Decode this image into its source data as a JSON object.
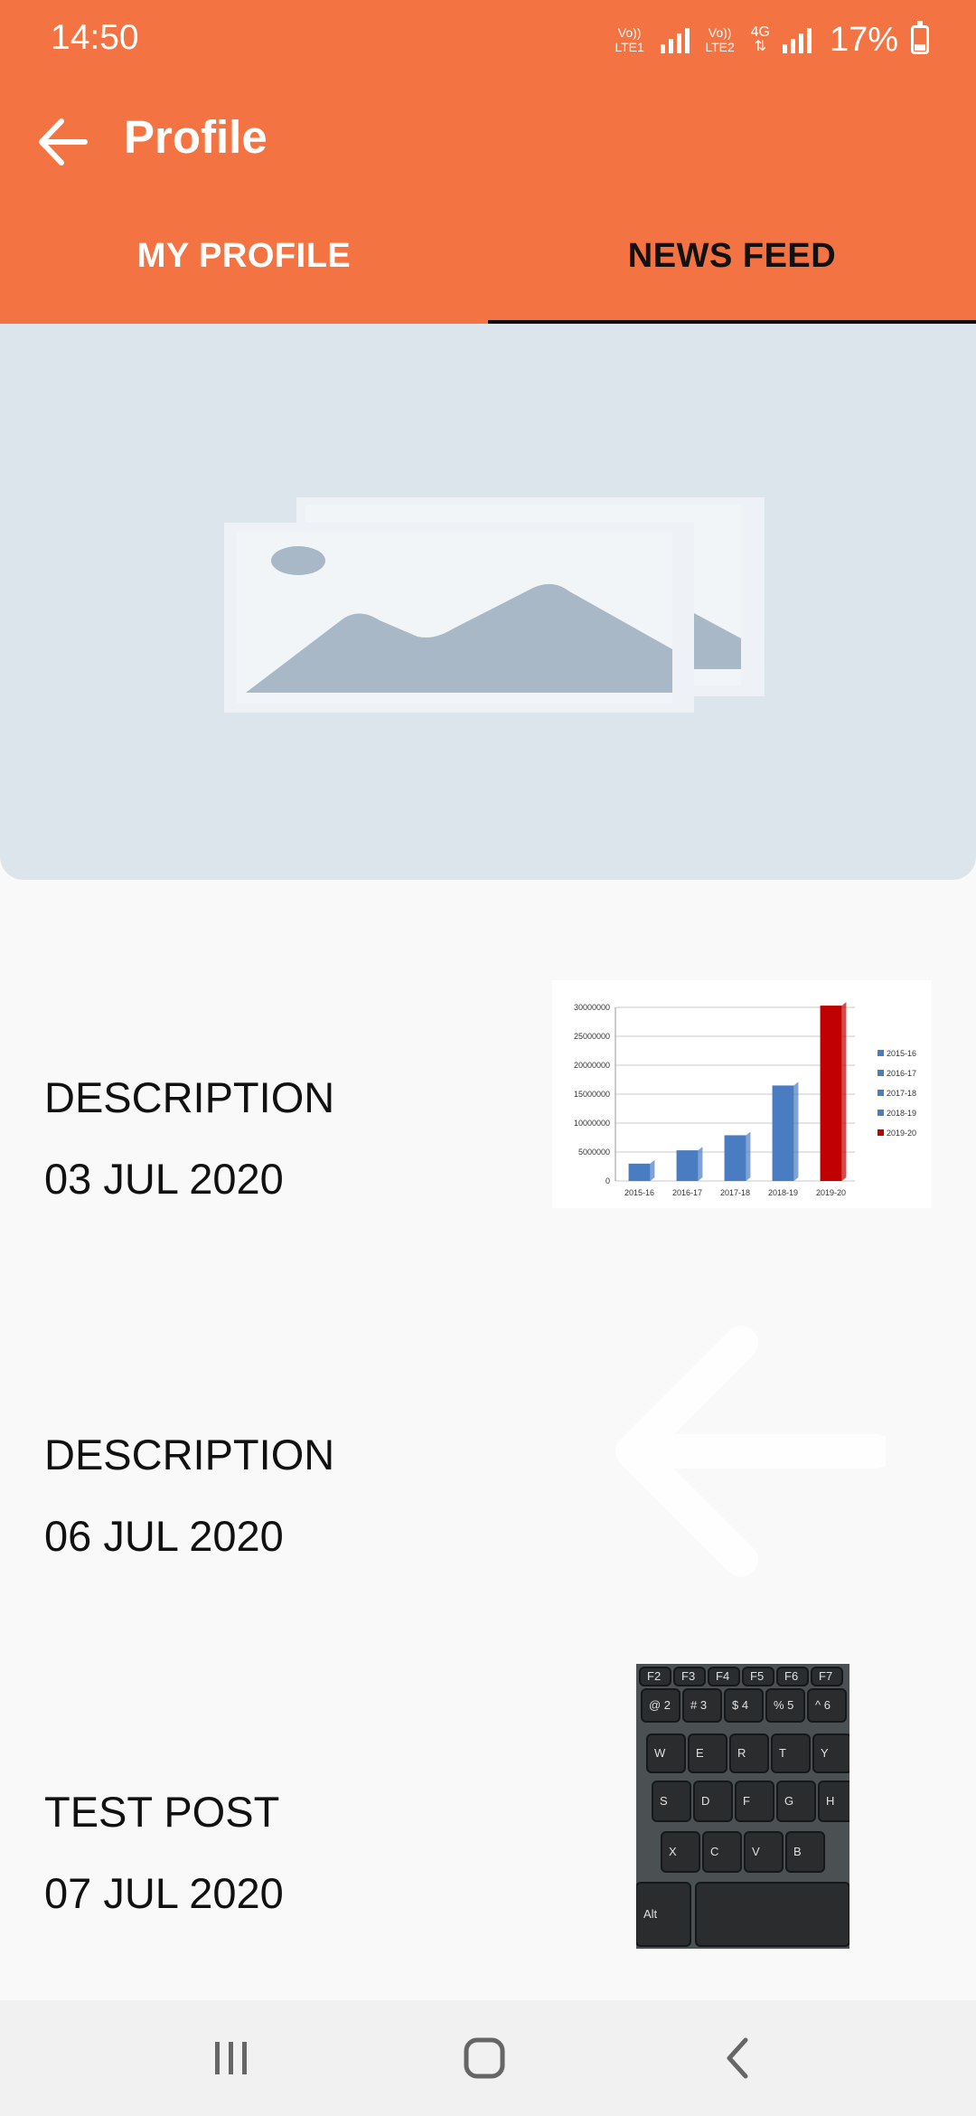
{
  "status_bar": {
    "time": "14:50",
    "sim1_label": "Vo)) LTE1",
    "sim2_label": "Vo)) LTE2",
    "data_label": "4G",
    "battery": "17%"
  },
  "toolbar": {
    "title": "Profile",
    "back_icon": "arrow-back-icon"
  },
  "tabs": [
    {
      "label": "MY PROFILE",
      "selected": false
    },
    {
      "label": "NEWS FEED",
      "selected": true
    }
  ],
  "colors": {
    "brand": "#f37442",
    "tab_indicator": "#111111",
    "placeholder_bg": "#dde5ec",
    "chart_blue": "#4a7cc2",
    "chart_red": "#c00000"
  },
  "feed": [
    {
      "title": "DESCRIPTION",
      "date": "03 JUL 2020",
      "thumbnail": "bar-chart-image"
    },
    {
      "title": "DESCRIPTION",
      "date": "06 JUL 2020",
      "thumbnail": "faded-arrow-image"
    },
    {
      "title": "TEST POST",
      "date": "07 JUL 2020",
      "thumbnail": "keyboard-photo"
    }
  ],
  "chart_data": {
    "type": "bar",
    "categories": [
      "2015-16",
      "2016-17",
      "2017-18",
      "2018-19",
      "2019-20"
    ],
    "values": [
      3000000,
      5300000,
      7900000,
      16500000,
      30300000
    ],
    "yticks": [
      "0",
      "5000000",
      "10000000",
      "15000000",
      "20000000",
      "25000000",
      "30000000"
    ],
    "ylim": [
      0,
      30000000
    ],
    "legend": [
      "2015-16",
      "2016-17",
      "2017-18",
      "2018-19",
      "2019-20"
    ],
    "legend_position": "right",
    "grid": true
  },
  "keyboard": {
    "fn_row": [
      "F2",
      "F3",
      "F4",
      "F5",
      "F6",
      "F7"
    ],
    "num_row": [
      "2",
      "3",
      "4",
      "5",
      "6"
    ],
    "num_sym": [
      "@",
      "#",
      "$",
      "%",
      "^"
    ],
    "row1": [
      "W",
      "E",
      "R",
      "T",
      "Y"
    ],
    "row2": [
      "S",
      "D",
      "F",
      "G",
      "H"
    ],
    "row3": [
      "X",
      "C",
      "V",
      "B"
    ],
    "alt": "Alt"
  },
  "nav_bar": {
    "recents_icon": "recents-icon",
    "home_icon": "home-icon",
    "back_icon": "nav-back-icon"
  }
}
